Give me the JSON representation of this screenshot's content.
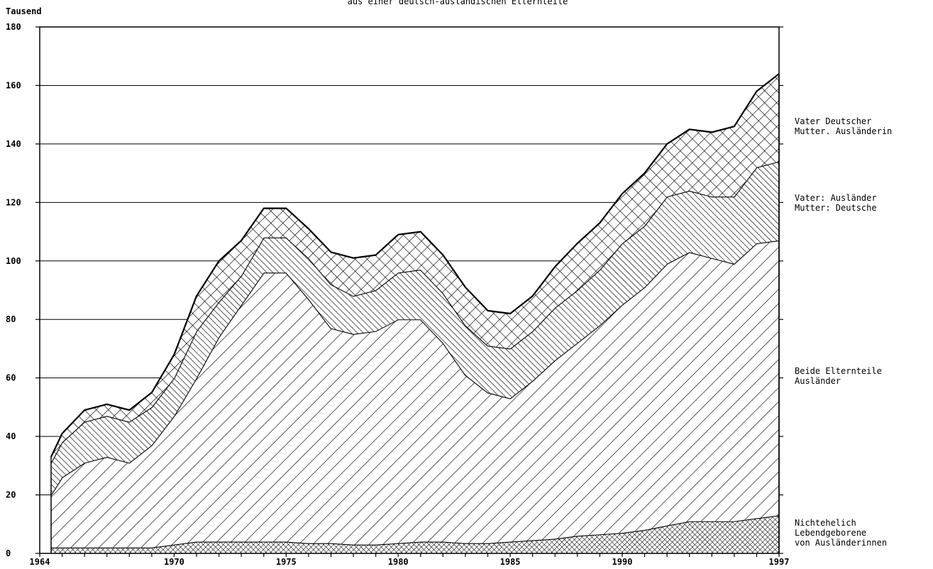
{
  "header": {
    "title": "aus einer deutsch-ausländischen Elternteile"
  },
  "chart_data": {
    "type": "area",
    "stacked": true,
    "ylabel": "Tausend",
    "ylim": [
      0,
      180
    ],
    "xlim": [
      1964,
      1997
    ],
    "y_ticks": [
      "0",
      "20",
      "40",
      "60",
      "80",
      "100",
      "120",
      "140",
      "160",
      "180"
    ],
    "x_ticks": [
      "1964",
      "1970",
      "1975",
      "1980",
      "1985",
      "1990",
      "1997"
    ],
    "grid": true,
    "legend_position": "right",
    "x": [
      1964,
      1965,
      1966,
      1967,
      1968,
      1969,
      1970,
      1971,
      1972,
      1973,
      1974,
      1975,
      1976,
      1977,
      1978,
      1979,
      1980,
      1981,
      1982,
      1983,
      1984,
      1985,
      1986,
      1987,
      1988,
      1989,
      1990,
      1991,
      1992,
      1993,
      1994,
      1995,
      1996,
      1997
    ],
    "series": [
      {
        "name": "Nichtehelich Lebendgeborene von Ausländerinnen",
        "legend": [
          "Nichtehelich",
          "Lebendgeborene",
          "von Ausländerinnen"
        ],
        "pattern": "crosshatch-fine",
        "values": [
          2,
          2,
          2,
          2,
          2,
          2,
          3,
          4,
          4,
          4,
          4,
          4,
          3.5,
          3.5,
          3,
          3,
          3.5,
          4,
          4,
          3.5,
          3.5,
          4,
          4.5,
          5,
          6,
          6.5,
          7,
          8,
          9.5,
          11,
          11,
          11,
          12,
          13
        ]
      },
      {
        "name": "Beide Elternteile Ausländer",
        "legend": [
          "Beide Elternteile",
          "Ausländer"
        ],
        "pattern": "diagonal",
        "values": [
          20,
          26,
          31,
          33,
          31,
          37,
          47,
          60,
          74,
          85,
          96,
          96,
          87,
          77,
          75,
          76,
          80,
          80,
          72,
          61,
          55,
          53,
          59,
          66,
          72,
          78,
          85,
          91,
          99,
          103,
          101,
          99,
          106,
          107
        ]
      },
      {
        "name": "Vater: Ausländer Mutter: Deutsche",
        "legend": [
          "Vater: Ausländer",
          "Mutter: Deutsche"
        ],
        "pattern": "diagonal-back",
        "values": [
          31,
          38,
          45,
          47,
          45,
          50,
          60,
          76,
          86,
          95,
          108,
          108,
          101,
          92,
          88,
          90,
          96,
          97,
          89,
          78,
          71,
          70,
          76,
          84,
          90,
          97,
          106,
          112,
          122,
          124,
          122,
          122,
          132,
          134
        ]
      },
      {
        "name": "Vater Deutscher Mutter: Ausländerin",
        "legend": [
          "Vater Deutscher",
          "Mutter. Ausländerin"
        ],
        "pattern": "crosshatch",
        "values": [
          33,
          41,
          49,
          51,
          49,
          55,
          68,
          88,
          100,
          107,
          118,
          118,
          111,
          103,
          101,
          102,
          109,
          110,
          102,
          91,
          83,
          82,
          88,
          98,
          106,
          113,
          123,
          130,
          140,
          145,
          144,
          146,
          158,
          164
        ]
      }
    ]
  }
}
